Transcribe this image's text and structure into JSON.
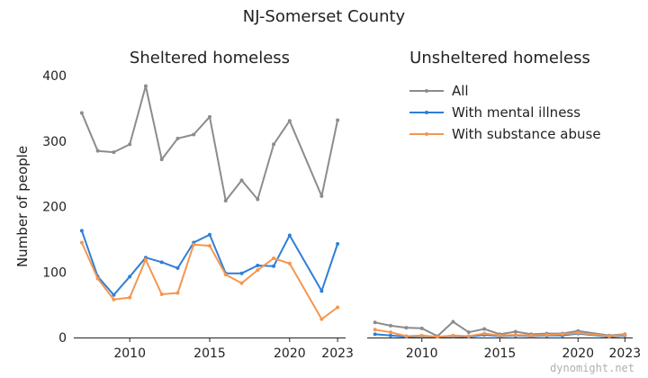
{
  "title": "NJ-Somerset County",
  "watermark": "dynomight.net",
  "chart_data": [
    {
      "type": "line",
      "title": "Sheltered homeless",
      "ylabel": "Number of people",
      "xlabel": "",
      "xlim": [
        2006.5,
        2023.5
      ],
      "ylim": [
        0,
        400
      ],
      "xticks": [
        2010,
        2015,
        2020,
        2023
      ],
      "yticks": [
        0,
        100,
        200,
        300,
        400
      ],
      "grid": false,
      "series": [
        {
          "name": "All",
          "color": "#8c8c8c",
          "x": [
            2007,
            2008,
            2009,
            2010,
            2011,
            2012,
            2013,
            2014,
            2015,
            2016,
            2017,
            2018,
            2019,
            2020,
            2022,
            2023
          ],
          "y": [
            343,
            285,
            283,
            295,
            384,
            272,
            304,
            310,
            337,
            209,
            240,
            211,
            295,
            331,
            216,
            332
          ]
        },
        {
          "name": "With mental illness",
          "color": "#2f7fd6",
          "x": [
            2007,
            2008,
            2009,
            2010,
            2011,
            2012,
            2013,
            2014,
            2015,
            2016,
            2017,
            2018,
            2019,
            2020,
            2022,
            2023
          ],
          "y": [
            163,
            93,
            65,
            93,
            122,
            115,
            106,
            145,
            157,
            98,
            98,
            110,
            109,
            156,
            71,
            143
          ]
        },
        {
          "name": "With substance abuse",
          "color": "#f5964f",
          "x": [
            2007,
            2008,
            2009,
            2010,
            2011,
            2012,
            2013,
            2014,
            2015,
            2016,
            2017,
            2018,
            2019,
            2020,
            2022,
            2023
          ],
          "y": [
            145,
            90,
            58,
            61,
            119,
            66,
            68,
            142,
            140,
            96,
            83,
            103,
            121,
            113,
            28,
            46
          ]
        }
      ]
    },
    {
      "type": "line",
      "title": "Unsheltered homeless",
      "ylabel": "",
      "xlabel": "",
      "xlim": [
        2006.5,
        2023.5
      ],
      "ylim": [
        0,
        400
      ],
      "xticks": [
        2010,
        2015,
        2020,
        2023
      ],
      "grid": false,
      "legend": "top-right",
      "series": [
        {
          "name": "All",
          "color": "#8c8c8c",
          "x": [
            2007,
            2008,
            2009,
            2010,
            2011,
            2012,
            2013,
            2014,
            2015,
            2016,
            2017,
            2018,
            2019,
            2020,
            2022,
            2023
          ],
          "y": [
            23,
            18,
            15,
            14,
            2,
            24,
            8,
            13,
            5,
            9,
            5,
            6,
            6,
            10,
            3,
            5
          ]
        },
        {
          "name": "With mental illness",
          "color": "#2f7fd6",
          "x": [
            2007,
            2008,
            2009,
            2010,
            2011,
            2012,
            2013,
            2014,
            2015,
            2016,
            2017,
            2018,
            2019,
            2020,
            2022,
            2023
          ],
          "y": [
            5,
            3,
            1,
            2,
            1,
            2,
            1,
            4,
            2,
            3,
            2,
            3,
            3,
            6,
            1,
            3
          ]
        },
        {
          "name": "With substance abuse",
          "color": "#f5964f",
          "x": [
            2007,
            2008,
            2009,
            2010,
            2011,
            2012,
            2013,
            2014,
            2015,
            2016,
            2017,
            2018,
            2019,
            2020,
            2022,
            2023
          ],
          "y": [
            12,
            8,
            2,
            3,
            1,
            3,
            2,
            6,
            3,
            4,
            3,
            4,
            5,
            7,
            2,
            4
          ]
        }
      ]
    }
  ]
}
